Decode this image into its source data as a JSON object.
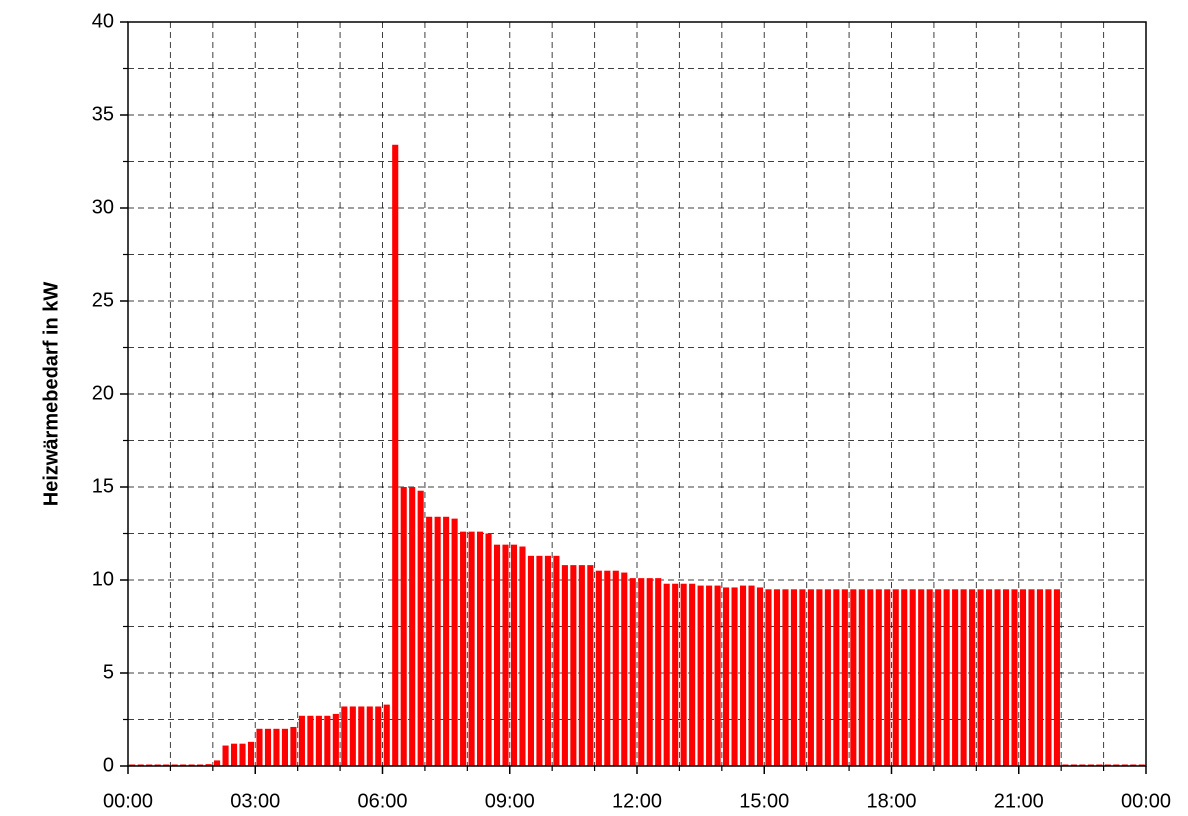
{
  "chart_data": {
    "type": "bar",
    "y_label": "Heizwärmebedarf in kW",
    "color": "#ff0000",
    "x": [
      0,
      0.2,
      0.4,
      0.6,
      0.8,
      1,
      1.2,
      1.4,
      1.6,
      1.8,
      2,
      2.2,
      2.4,
      2.6,
      2.8,
      3,
      3.2,
      3.4,
      3.6,
      3.8,
      4,
      4.2,
      4.4,
      4.6,
      4.8,
      5,
      5.2,
      5.4,
      5.6,
      5.8,
      6,
      6.2,
      6.4,
      6.6,
      6.8,
      7,
      7.2,
      7.4,
      7.6,
      7.8,
      8,
      8.2,
      8.4,
      8.6,
      8.8,
      9,
      9.2,
      9.4,
      9.6,
      9.8,
      10,
      10.2,
      10.4,
      10.6,
      10.8,
      11,
      11.2,
      11.4,
      11.6,
      11.8,
      12,
      12.2,
      12.4,
      12.6,
      12.8,
      13,
      13.2,
      13.4,
      13.6,
      13.8,
      14,
      14.2,
      14.4,
      14.6,
      14.8,
      15,
      15.2,
      15.4,
      15.6,
      15.8,
      16,
      16.2,
      16.4,
      16.6,
      16.8,
      17,
      17.2,
      17.4,
      17.6,
      17.8,
      18,
      18.2,
      18.4,
      18.6,
      18.8,
      19,
      19.2,
      19.4,
      19.6,
      19.8,
      20,
      20.2,
      20.4,
      20.6,
      20.8,
      21,
      21.2,
      21.4,
      21.6,
      21.8,
      22,
      22.2,
      22.4,
      22.6,
      22.8,
      23,
      23.2,
      23.4,
      23.6,
      23.8
    ],
    "values": [
      0,
      0,
      0,
      0,
      0,
      0,
      0,
      0,
      0,
      0.1,
      0.3,
      1.1,
      1.2,
      1.2,
      1.3,
      2.0,
      2.0,
      2.0,
      2.0,
      2.1,
      2.7,
      2.7,
      2.7,
      2.7,
      2.8,
      3.2,
      3.2,
      3.2,
      3.2,
      3.2,
      3.3,
      33.4,
      15.0,
      15.0,
      14.8,
      13.4,
      13.4,
      13.4,
      13.3,
      12.6,
      12.6,
      12.6,
      12.5,
      11.9,
      11.9,
      11.9,
      11.8,
      11.3,
      11.3,
      11.3,
      11.3,
      10.8,
      10.8,
      10.8,
      10.8,
      10.5,
      10.5,
      10.5,
      10.4,
      10.1,
      10.1,
      10.1,
      10.1,
      9.8,
      9.8,
      9.8,
      9.8,
      9.7,
      9.7,
      9.7,
      9.6,
      9.6,
      9.7,
      9.7,
      9.6,
      9.5,
      9.5,
      9.5,
      9.5,
      9.5,
      9.5,
      9.5,
      9.5,
      9.5,
      9.5,
      9.5,
      9.5,
      9.5,
      9.5,
      9.5,
      9.5,
      9.5,
      9.5,
      9.5,
      9.5,
      9.5,
      9.5,
      9.5,
      9.5,
      9.5,
      9.5,
      9.5,
      9.5,
      9.5,
      9.5,
      9.5,
      9.5,
      9.5,
      9.5,
      9.5,
      0,
      0,
      0,
      0,
      0,
      0,
      0,
      0,
      0,
      0
    ],
    "bar_width": 0.2,
    "xlim": [
      0,
      24
    ],
    "xticks": [
      {
        "value": 0,
        "label": "00:00"
      },
      {
        "value": 3,
        "label": "03:00"
      },
      {
        "value": 6,
        "label": "06:00"
      },
      {
        "value": 9,
        "label": "09:00"
      },
      {
        "value": 12,
        "label": "12:00"
      },
      {
        "value": 15,
        "label": "15:00"
      },
      {
        "value": 18,
        "label": "18:00"
      },
      {
        "value": 21,
        "label": "21:00"
      },
      {
        "value": 24,
        "label": "00:00"
      }
    ],
    "x_minor_ticks": [
      1,
      2,
      4,
      5,
      7,
      8,
      10,
      11,
      13,
      14,
      16,
      17,
      19,
      20,
      22,
      23
    ],
    "ylim": [
      0,
      40
    ],
    "yticks": [
      0,
      5,
      10,
      15,
      20,
      25,
      30,
      35,
      40
    ],
    "y_minor_ticks": [
      2.5,
      7.5,
      12.5,
      17.5,
      22.5,
      27.5,
      32.5,
      37.5
    ],
    "grid": true
  }
}
